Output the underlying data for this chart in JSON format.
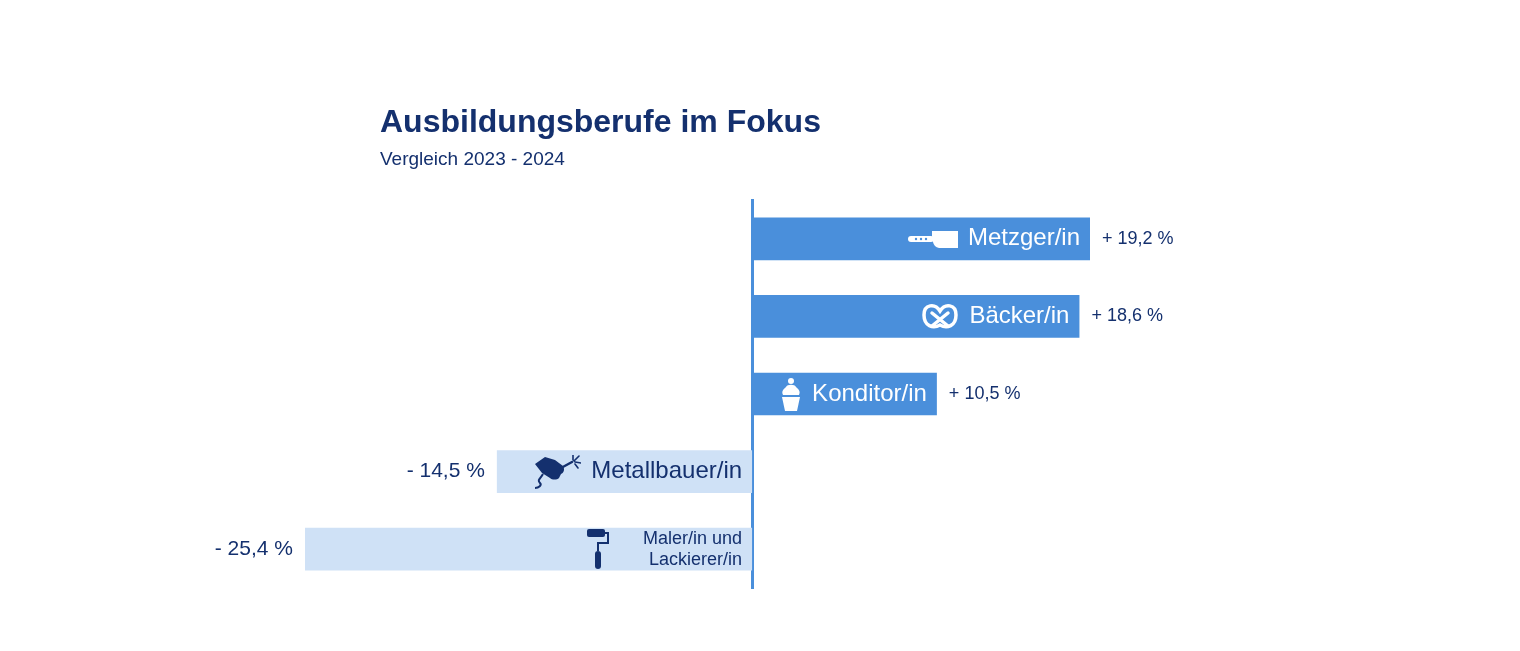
{
  "chart_data": {
    "type": "bar",
    "orientation": "horizontal",
    "title": "Ausbildungsberufe im Fokus",
    "subtitle": "Vergleich 2023 - 2024",
    "categories": [
      "Metzger/in",
      "Bäcker/in",
      "Konditor/in",
      "Metallbauer/in",
      "Maler/in und Lackierer/in"
    ],
    "values": [
      19.2,
      18.6,
      10.5,
      -14.5,
      -25.4
    ],
    "colors": [
      "#4a8fdb",
      "#4a8fdb",
      "#4a8fdb",
      "#cfe1f6",
      "#cfe1f6"
    ],
    "value_labels": [
      "+ 19,2 %",
      "+ 18,6 %",
      "+ 10,5 %",
      "- 14,5 %",
      "- 25,4 %"
    ],
    "tick_labels": "y"
  }
}
